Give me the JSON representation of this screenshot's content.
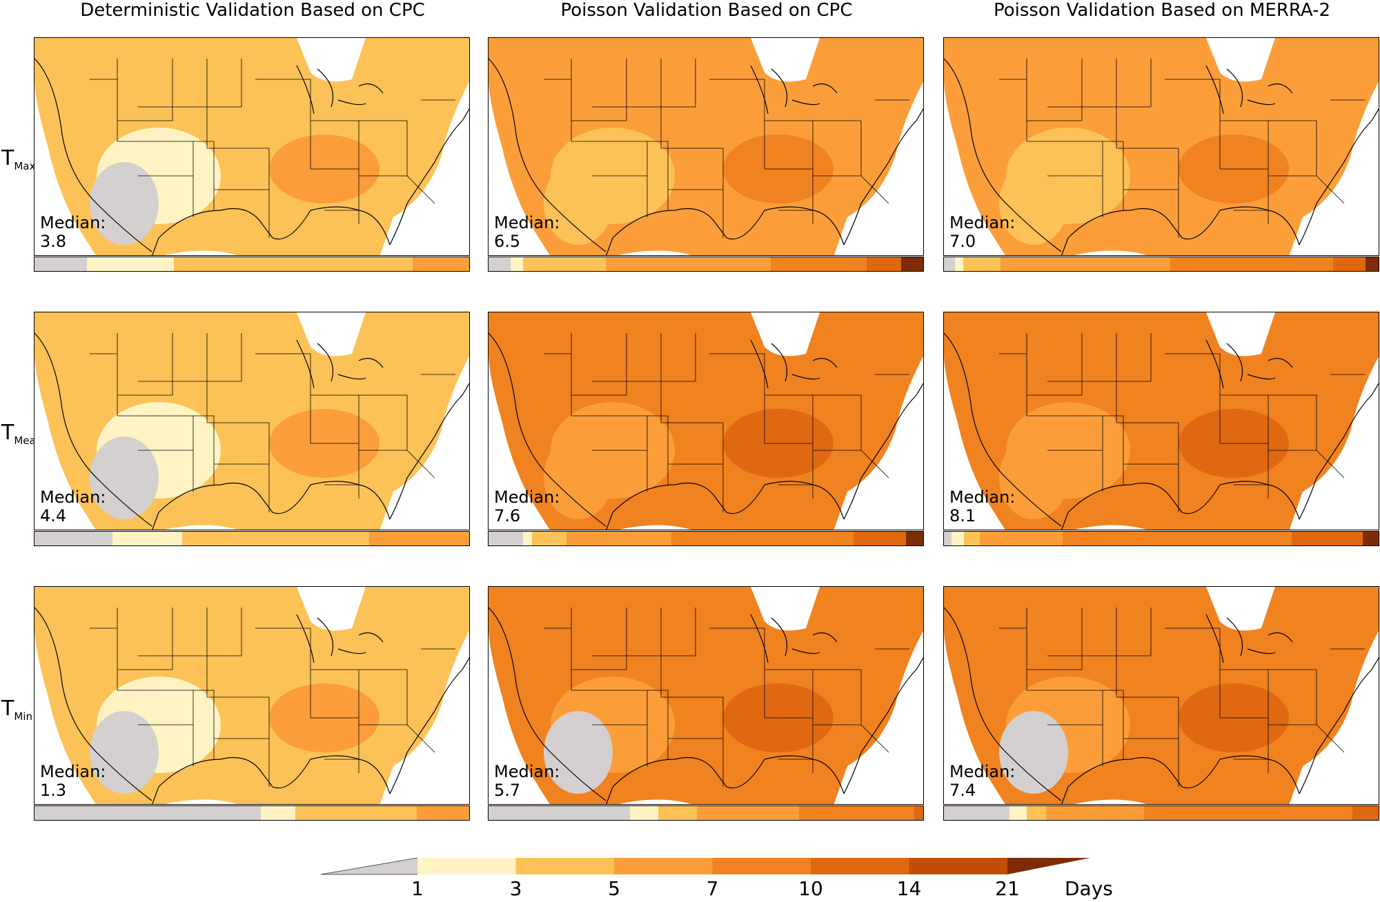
{
  "columns": [
    {
      "title": "Deterministic Validation Based on CPC"
    },
    {
      "title": "Poisson Validation Based on CPC"
    },
    {
      "title": "Poisson Validation Based on MERRA-2"
    }
  ],
  "rows": [
    {
      "label_main": "T",
      "label_sub": "Max"
    },
    {
      "label_main": "T",
      "label_sub": "Mean"
    },
    {
      "label_main": "T",
      "label_sub": "Min"
    }
  ],
  "median_label": "Median:",
  "panels": [
    {
      "median": "3.8",
      "dist": [
        0.12,
        0.2,
        0.55,
        0.13,
        0,
        0,
        0
      ]
    },
    {
      "median": "6.5",
      "dist": [
        0.05,
        0.03,
        0.19,
        0.38,
        0.22,
        0.08,
        0.05
      ]
    },
    {
      "median": "7.0",
      "dist": [
        0.025,
        0.02,
        0.085,
        0.39,
        0.375,
        0.075,
        0.03
      ]
    },
    {
      "median": "4.4",
      "dist": [
        0.18,
        0.16,
        0.43,
        0.23,
        0,
        0,
        0
      ]
    },
    {
      "median": "7.6",
      "dist": [
        0.08,
        0.02,
        0.08,
        0.24,
        0.42,
        0.12,
        0.04
      ]
    },
    {
      "median": "8.1",
      "dist": [
        0.02,
        0.03,
        0.04,
        0.21,
        0.58,
        0.18,
        0.04
      ]
    },
    {
      "median": "1.3",
      "dist": [
        0.52,
        0.08,
        0.28,
        0.12,
        0,
        0,
        0
      ]
    },
    {
      "median": "5.7",
      "dist": [
        0.325,
        0.065,
        0.09,
        0.235,
        0.265,
        0.02,
        0
      ]
    },
    {
      "median": "7.4",
      "dist": [
        0.15,
        0.04,
        0.045,
        0.225,
        0.48,
        0.06,
        0
      ]
    }
  ],
  "legend": {
    "ticks": [
      "1",
      "3",
      "5",
      "7",
      "10",
      "14",
      "21"
    ],
    "unit": "Days"
  },
  "colors": {
    "under": "#d3d0cf",
    "bins": [
      "#fff3c3",
      "#fcc257",
      "#fb9e3a",
      "#f0821f",
      "#e06810",
      "#c24d06",
      "#7d2c06"
    ],
    "border": "#000000"
  }
}
